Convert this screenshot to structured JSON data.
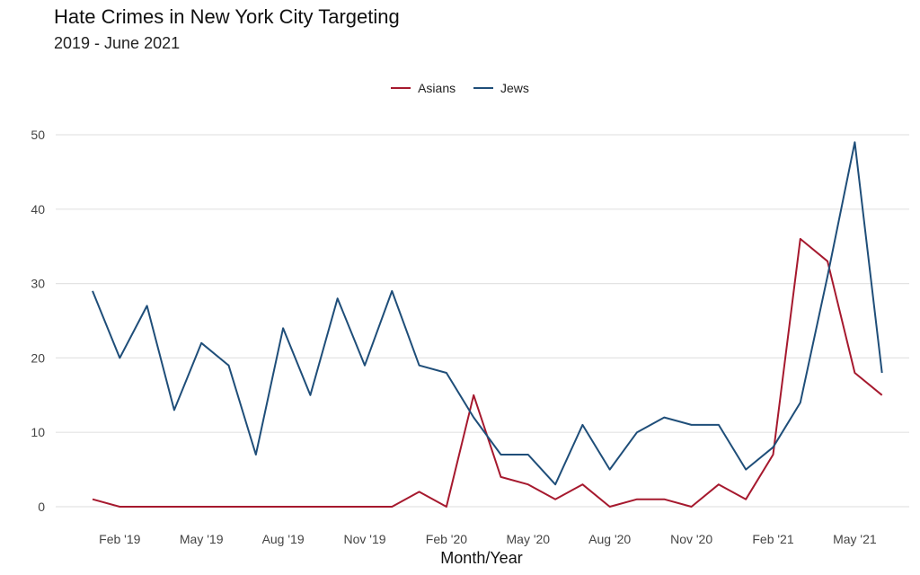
{
  "chart_data": {
    "type": "line",
    "title": "Hate Crimes in New York City Targeting",
    "subtitle": "2019 - June 2021",
    "xlabel": "Month/Year",
    "ylabel": "",
    "ylim": [
      0,
      50
    ],
    "y_ticks": [
      0,
      10,
      20,
      30,
      40,
      50
    ],
    "x_ticks": [
      "Feb '19",
      "May '19",
      "Aug '19",
      "Nov '19",
      "Feb '20",
      "May '20",
      "Aug '20",
      "Nov '20",
      "Feb '21",
      "May '21"
    ],
    "x": [
      "Jan '19",
      "Feb '19",
      "Mar '19",
      "Apr '19",
      "May '19",
      "Jun '19",
      "Jul '19",
      "Aug '19",
      "Sep '19",
      "Oct '19",
      "Nov '19",
      "Dec '19",
      "Jan '20",
      "Feb '20",
      "Mar '20",
      "Apr '20",
      "May '20",
      "Jun '20",
      "Jul '20",
      "Aug '20",
      "Sep '20",
      "Oct '20",
      "Nov '20",
      "Dec '20",
      "Jan '21",
      "Feb '21",
      "Mar '21",
      "Apr '21",
      "May '21",
      "Jun '21"
    ],
    "grid": "horizontal",
    "legend_position": "top",
    "series": [
      {
        "name": "Asians",
        "color": "#a6192e",
        "values": [
          1,
          0,
          0,
          0,
          0,
          0,
          0,
          0,
          0,
          0,
          0,
          0,
          2,
          0,
          15,
          4,
          3,
          1,
          3,
          0,
          1,
          1,
          0,
          3,
          1,
          7,
          36,
          33,
          18,
          15
        ]
      },
      {
        "name": "Jews",
        "color": "#1f4e79",
        "values": [
          29,
          20,
          27,
          13,
          22,
          19,
          7,
          24,
          15,
          28,
          19,
          29,
          19,
          18,
          12,
          7,
          7,
          3,
          11,
          5,
          10,
          12,
          11,
          11,
          5,
          8,
          14,
          31,
          49,
          18
        ]
      }
    ]
  }
}
